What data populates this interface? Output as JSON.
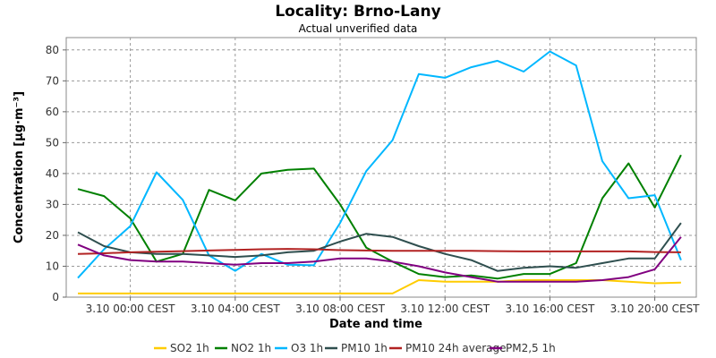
{
  "chart_data": {
    "type": "line",
    "title": "Locality: Brno-Lany",
    "subtitle": "Actual unverified data",
    "xlabel": "Date and time",
    "ylabel": "Concentration [µg·m⁻³]",
    "ylim": [
      0,
      84
    ],
    "yticks": [
      0,
      10,
      20,
      30,
      40,
      50,
      60,
      70,
      80
    ],
    "x": [
      "2.10 22:00",
      "2.10 23:00",
      "3.10 00:00",
      "3.10 01:00",
      "3.10 02:00",
      "3.10 03:00",
      "3.10 04:00",
      "3.10 05:00",
      "3.10 06:00",
      "3.10 07:00",
      "3.10 08:00",
      "3.10 09:00",
      "3.10 10:00",
      "3.10 11:00",
      "3.10 12:00",
      "3.10 13:00",
      "3.10 14:00",
      "3.10 15:00",
      "3.10 16:00",
      "3.10 17:00",
      "3.10 18:00",
      "3.10 19:00",
      "3.10 20:00",
      "3.10 21:00"
    ],
    "xticks": [
      {
        "index": 2,
        "label": "3.10 00:00 CEST"
      },
      {
        "index": 6,
        "label": "3.10 04:00 CEST"
      },
      {
        "index": 10,
        "label": "3.10 08:00 CEST"
      },
      {
        "index": 14,
        "label": "3.10 12:00 CEST"
      },
      {
        "index": 18,
        "label": "3.10 16:00 CEST"
      },
      {
        "index": 22,
        "label": "3.10 20:00 CEST"
      }
    ],
    "grid": true,
    "legend_position": "bottom",
    "series": [
      {
        "name": "SO2 1h",
        "color": "#ffcc00",
        "values": [
          1.2,
          1.2,
          1.2,
          1.2,
          1.2,
          1.2,
          1.2,
          1.2,
          1.2,
          1.2,
          1.2,
          1.2,
          1.2,
          5.5,
          5.0,
          5.0,
          5.0,
          5.5,
          5.5,
          5.5,
          5.5,
          5.0,
          4.5,
          4.7
        ]
      },
      {
        "name": "NO2 1h",
        "color": "#008000",
        "values": [
          35.0,
          32.7,
          25.5,
          11.5,
          14.0,
          34.7,
          31.3,
          40.0,
          41.2,
          41.6,
          30.0,
          16.0,
          11.5,
          7.5,
          6.5,
          7.0,
          6.0,
          7.5,
          7.5,
          11.0,
          32.0,
          43.3,
          29.0,
          46.0
        ]
      },
      {
        "name": "O3 1h",
        "color": "#00b7ff",
        "values": [
          6.2,
          15.5,
          23.0,
          40.4,
          31.5,
          13.5,
          8.5,
          14.0,
          10.5,
          10.3,
          24.0,
          40.8,
          50.8,
          72.2,
          71.0,
          74.4,
          76.5,
          73.0,
          79.5,
          75.0,
          44.0,
          32.0,
          33.0,
          12.0
        ]
      },
      {
        "name": "PM10 1h",
        "color": "#2f4f4f",
        "values": [
          21.0,
          16.5,
          14.5,
          14.0,
          14.0,
          13.5,
          13.0,
          13.5,
          14.5,
          15.0,
          18.0,
          20.5,
          19.5,
          16.5,
          14.0,
          12.0,
          8.5,
          9.5,
          10.0,
          9.5,
          11.0,
          12.5,
          12.5,
          24.0
        ]
      },
      {
        "name": "PM10 24h average",
        "color": "#b22222",
        "values": [
          14.0,
          14.2,
          14.5,
          14.7,
          14.9,
          15.1,
          15.3,
          15.5,
          15.6,
          15.5,
          15.2,
          15.1,
          15.0,
          15.0,
          15.0,
          15.0,
          14.9,
          14.8,
          14.8,
          14.8,
          14.8,
          14.8,
          14.6,
          14.5
        ]
      },
      {
        "name": "PM2,5 1h",
        "color": "#800080",
        "values": [
          17.0,
          13.5,
          12.0,
          11.5,
          11.5,
          11.0,
          10.5,
          11.0,
          11.0,
          11.5,
          12.5,
          12.5,
          11.5,
          10.0,
          8.0,
          6.5,
          5.0,
          5.0,
          5.0,
          5.0,
          5.5,
          6.5,
          9.0,
          19.5
        ]
      }
    ]
  }
}
